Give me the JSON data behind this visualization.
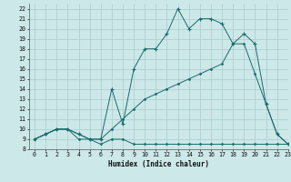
{
  "bg_color": "#cce8e8",
  "grid_color": "#aacccc",
  "line_color": "#1a6b6b",
  "xlabel": "Humidex (Indice chaleur)",
  "xlim": [
    -0.5,
    23
  ],
  "ylim": [
    8,
    22.5
  ],
  "xticks": [
    0,
    1,
    2,
    3,
    4,
    5,
    6,
    7,
    8,
    9,
    10,
    11,
    12,
    13,
    14,
    15,
    16,
    17,
    18,
    19,
    20,
    21,
    22,
    23
  ],
  "yticks": [
    8,
    9,
    10,
    11,
    12,
    13,
    14,
    15,
    16,
    17,
    18,
    19,
    20,
    21,
    22
  ],
  "line1_x": [
    0,
    1,
    2,
    3,
    4,
    5,
    6,
    7,
    8,
    9,
    10,
    11,
    12,
    13,
    14,
    15,
    16,
    17,
    18,
    19,
    20,
    21,
    22,
    23
  ],
  "line1_y": [
    9.0,
    9.5,
    10.0,
    10.0,
    9.0,
    9.0,
    8.5,
    9.0,
    9.0,
    8.5,
    8.5,
    8.5,
    8.5,
    8.5,
    8.5,
    8.5,
    8.5,
    8.5,
    8.5,
    8.5,
    8.5,
    8.5,
    8.5,
    8.5
  ],
  "line2_x": [
    0,
    1,
    2,
    3,
    4,
    5,
    6,
    7,
    8,
    9,
    10,
    11,
    12,
    13,
    14,
    15,
    16,
    17,
    18,
    19,
    20,
    21,
    22,
    23
  ],
  "line2_y": [
    9.0,
    9.5,
    10.0,
    10.0,
    9.5,
    9.0,
    9.0,
    10.0,
    11.0,
    12.0,
    13.0,
    13.5,
    14.0,
    14.5,
    15.0,
    15.5,
    16.0,
    16.5,
    18.5,
    18.5,
    15.5,
    12.5,
    9.5,
    8.5
  ],
  "line3_x": [
    0,
    1,
    2,
    3,
    4,
    5,
    6,
    7,
    8,
    9,
    10,
    11,
    12,
    13,
    14,
    15,
    16,
    17,
    18,
    19,
    20,
    21,
    22,
    23
  ],
  "line3_y": [
    9.0,
    9.5,
    10.0,
    10.0,
    9.5,
    9.0,
    9.0,
    14.0,
    10.5,
    16.0,
    18.0,
    18.0,
    19.5,
    22.0,
    20.0,
    21.0,
    21.0,
    20.5,
    18.5,
    19.5,
    18.5,
    12.5,
    9.5,
    8.5
  ]
}
